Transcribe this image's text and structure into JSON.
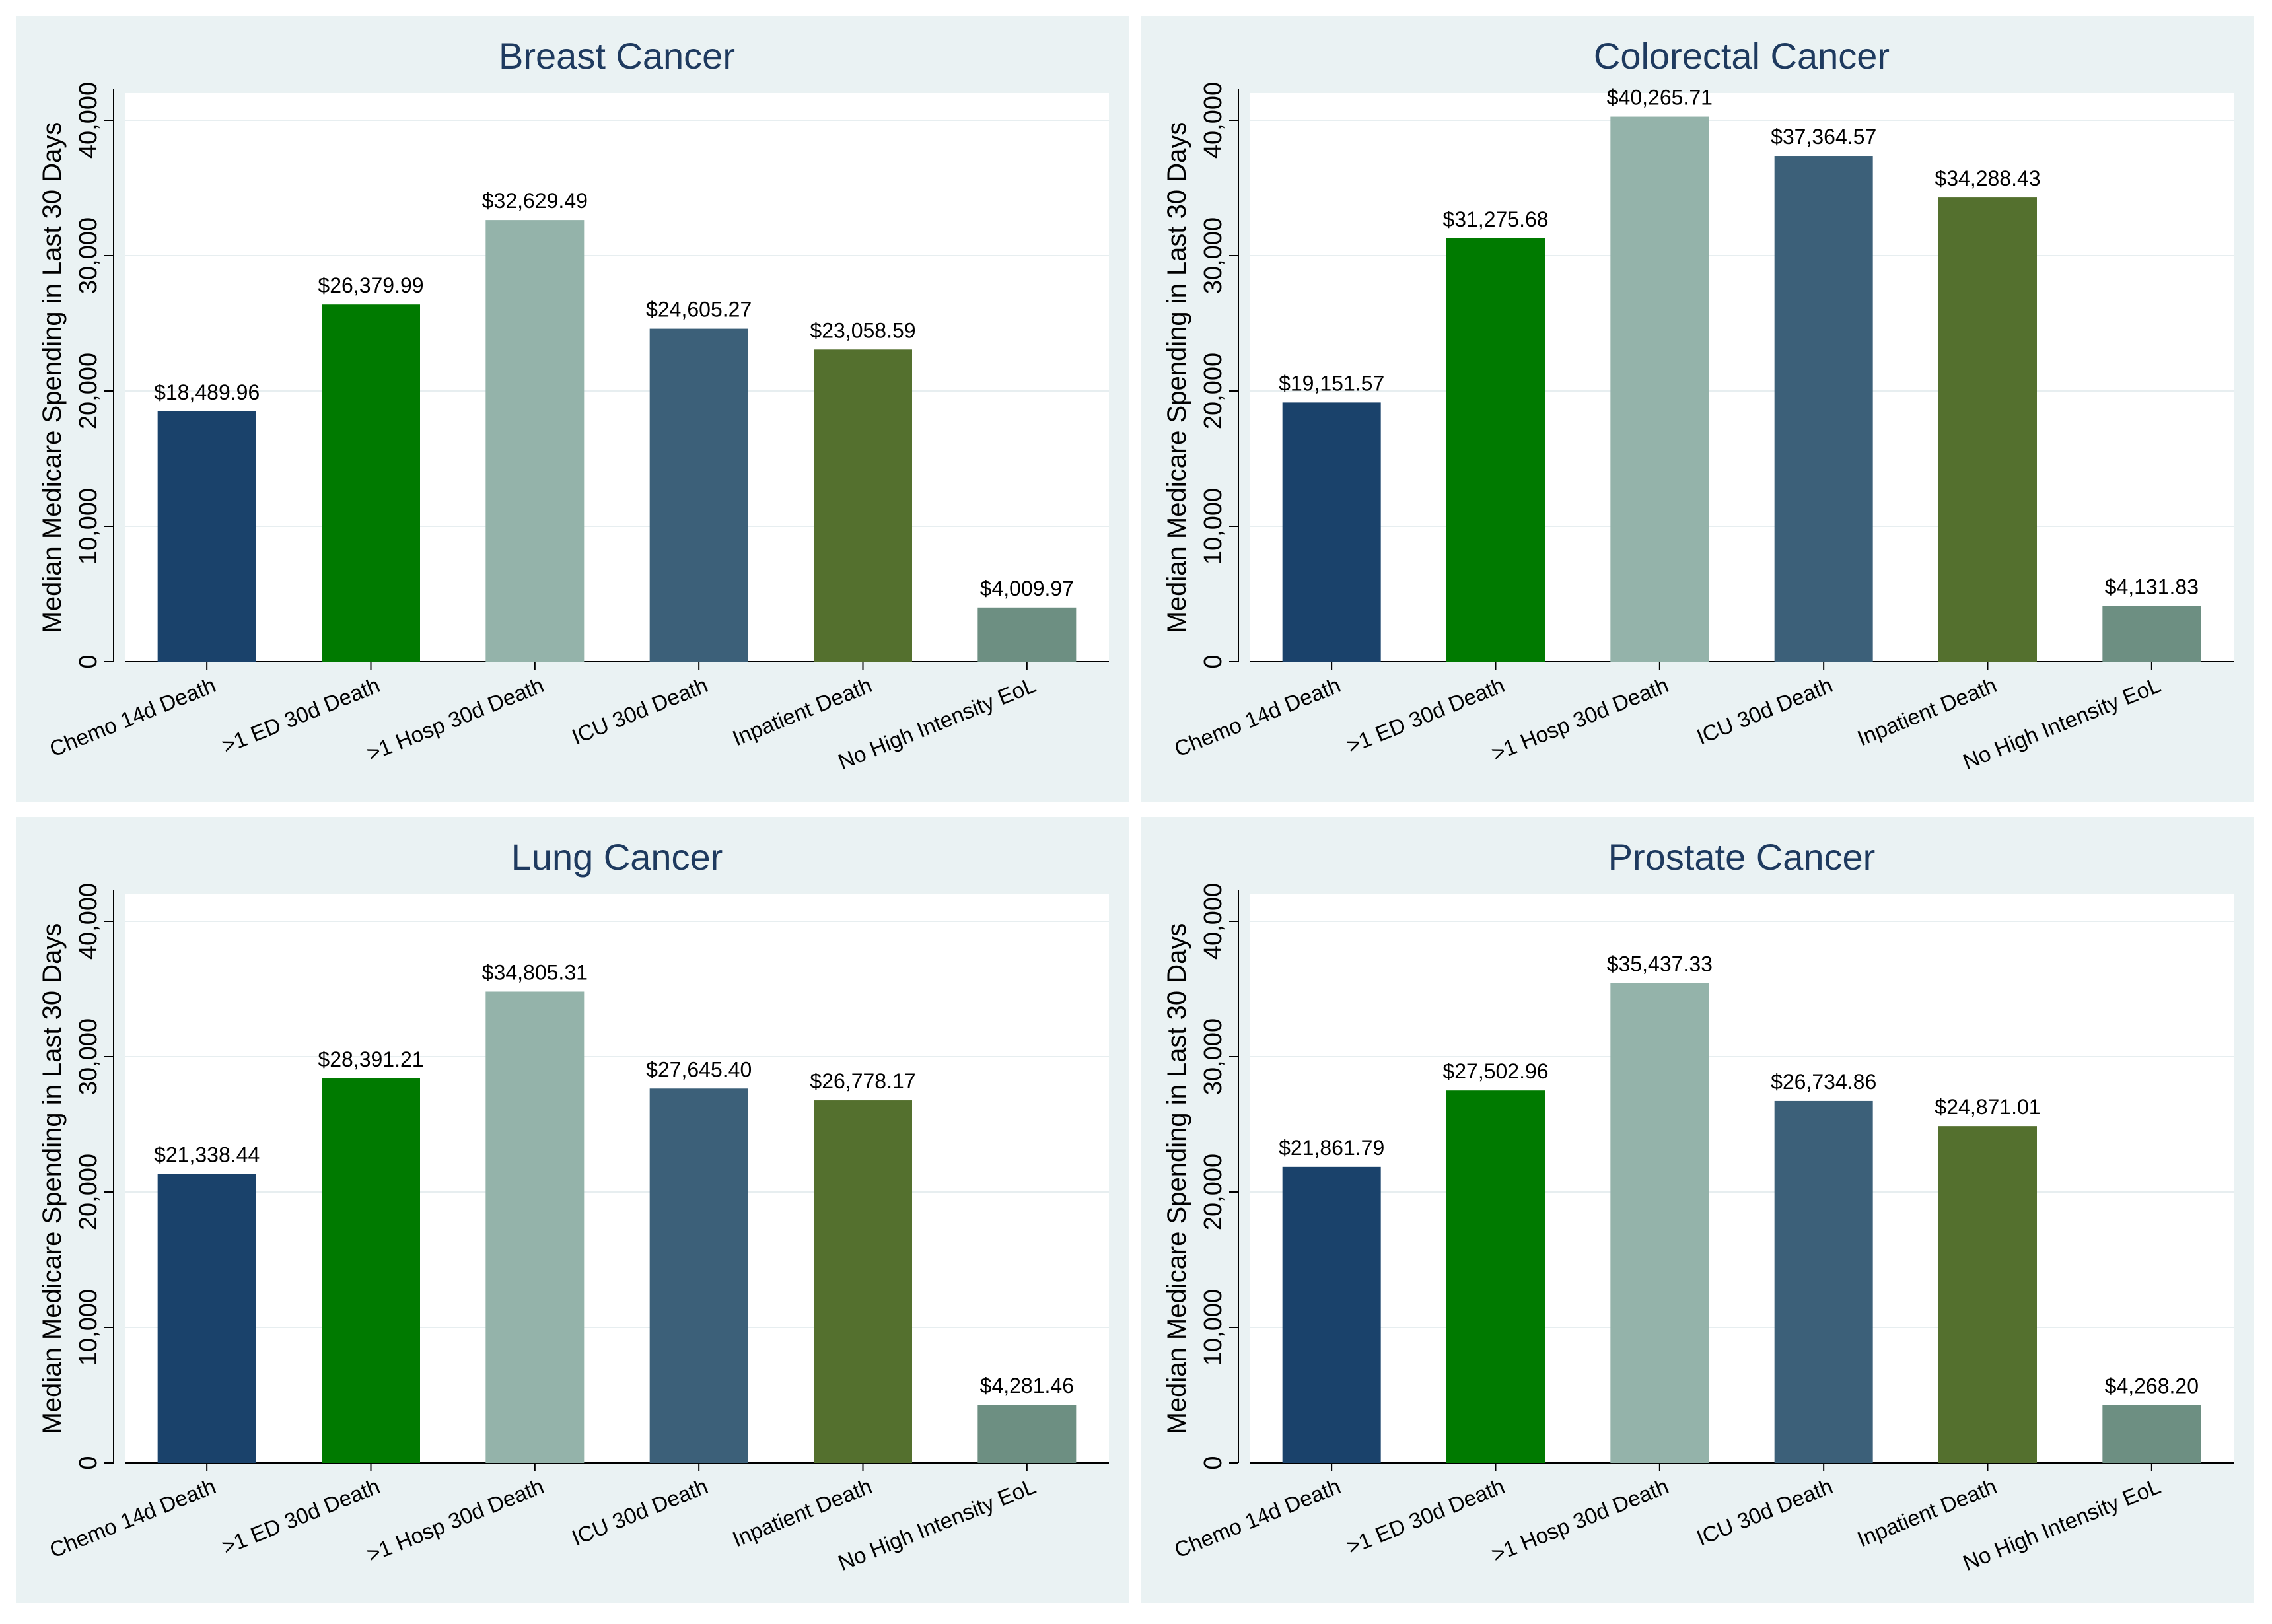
{
  "chart_data": [
    {
      "type": "bar",
      "title": "Breast Cancer",
      "ylabel": "Median Medicare Spending in Last 30 Days",
      "xlabel": "",
      "ylim": [
        0,
        42000
      ],
      "yticks": [
        0,
        10000,
        20000,
        30000,
        40000
      ],
      "ytick_labels": [
        "0",
        "10,000",
        "20,000",
        "30,000",
        "40,000"
      ],
      "grid": "horizontal",
      "categories": [
        "Chemo 14d Death",
        ">1 ED 30d Death",
        ">1 Hosp 30d Death",
        "ICU 30d Death",
        "Inpatient Death",
        "No High Intensity EoL"
      ],
      "values": [
        18489.96,
        26379.99,
        32629.49,
        24605.27,
        23058.59,
        4009.97
      ],
      "value_labels": [
        "$18,489.96",
        "$26,379.99",
        "$32,629.49",
        "$24,605.27",
        "$23,058.59",
        "$4,009.97"
      ],
      "colors": [
        "#1a426b",
        "#007a00",
        "#94b3aa",
        "#3c6079",
        "#54702e",
        "#6d8f82"
      ]
    },
    {
      "type": "bar",
      "title": "Colorectal Cancer",
      "ylabel": "Median Medicare Spending in Last 30 Days",
      "xlabel": "",
      "ylim": [
        0,
        42000
      ],
      "yticks": [
        0,
        10000,
        20000,
        30000,
        40000
      ],
      "ytick_labels": [
        "0",
        "10,000",
        "20,000",
        "30,000",
        "40,000"
      ],
      "grid": "horizontal",
      "categories": [
        "Chemo 14d Death",
        ">1 ED 30d Death",
        ">1 Hosp 30d Death",
        "ICU 30d Death",
        "Inpatient Death",
        "No High Intensity EoL"
      ],
      "values": [
        19151.57,
        31275.68,
        40265.71,
        37364.57,
        34288.43,
        4131.83
      ],
      "value_labels": [
        "$19,151.57",
        "$31,275.68",
        "$40,265.71",
        "$37,364.57",
        "$34,288.43",
        "$4,131.83"
      ],
      "colors": [
        "#1a426b",
        "#007a00",
        "#94b3aa",
        "#3c6079",
        "#54702e",
        "#6d8f82"
      ]
    },
    {
      "type": "bar",
      "title": "Lung Cancer",
      "ylabel": "Median Medicare Spending in Last 30 Days",
      "xlabel": "",
      "ylim": [
        0,
        42000
      ],
      "yticks": [
        0,
        10000,
        20000,
        30000,
        40000
      ],
      "ytick_labels": [
        "0",
        "10,000",
        "20,000",
        "30,000",
        "40,000"
      ],
      "grid": "horizontal",
      "categories": [
        "Chemo 14d Death",
        ">1 ED 30d Death",
        ">1 Hosp 30d Death",
        "ICU 30d Death",
        "Inpatient Death",
        "No High Intensity EoL"
      ],
      "values": [
        21338.44,
        28391.21,
        34805.31,
        27645.4,
        26778.17,
        4281.46
      ],
      "value_labels": [
        "$21,338.44",
        "$28,391.21",
        "$34,805.31",
        "$27,645.40",
        "$26,778.17",
        "$4,281.46"
      ],
      "colors": [
        "#1a426b",
        "#007a00",
        "#94b3aa",
        "#3c6079",
        "#54702e",
        "#6d8f82"
      ]
    },
    {
      "type": "bar",
      "title": "Prostate Cancer",
      "ylabel": "Median Medicare Spending in Last 30 Days",
      "xlabel": "",
      "ylim": [
        0,
        42000
      ],
      "yticks": [
        0,
        10000,
        20000,
        30000,
        40000
      ],
      "ytick_labels": [
        "0",
        "10,000",
        "20,000",
        "30,000",
        "40,000"
      ],
      "grid": "horizontal",
      "categories": [
        "Chemo 14d Death",
        ">1 ED 30d Death",
        ">1 Hosp 30d Death",
        "ICU 30d Death",
        "Inpatient Death",
        "No High Intensity EoL"
      ],
      "values": [
        21861.79,
        27502.96,
        35437.33,
        26734.86,
        24871.01,
        4268.2
      ],
      "value_labels": [
        "$21,861.79",
        "$27,502.96",
        "$35,437.33",
        "$26,734.86",
        "$24,871.01",
        "$4,268.20"
      ],
      "colors": [
        "#1a426b",
        "#007a00",
        "#94b3aa",
        "#3c6079",
        "#54702e",
        "#6d8f82"
      ]
    }
  ]
}
